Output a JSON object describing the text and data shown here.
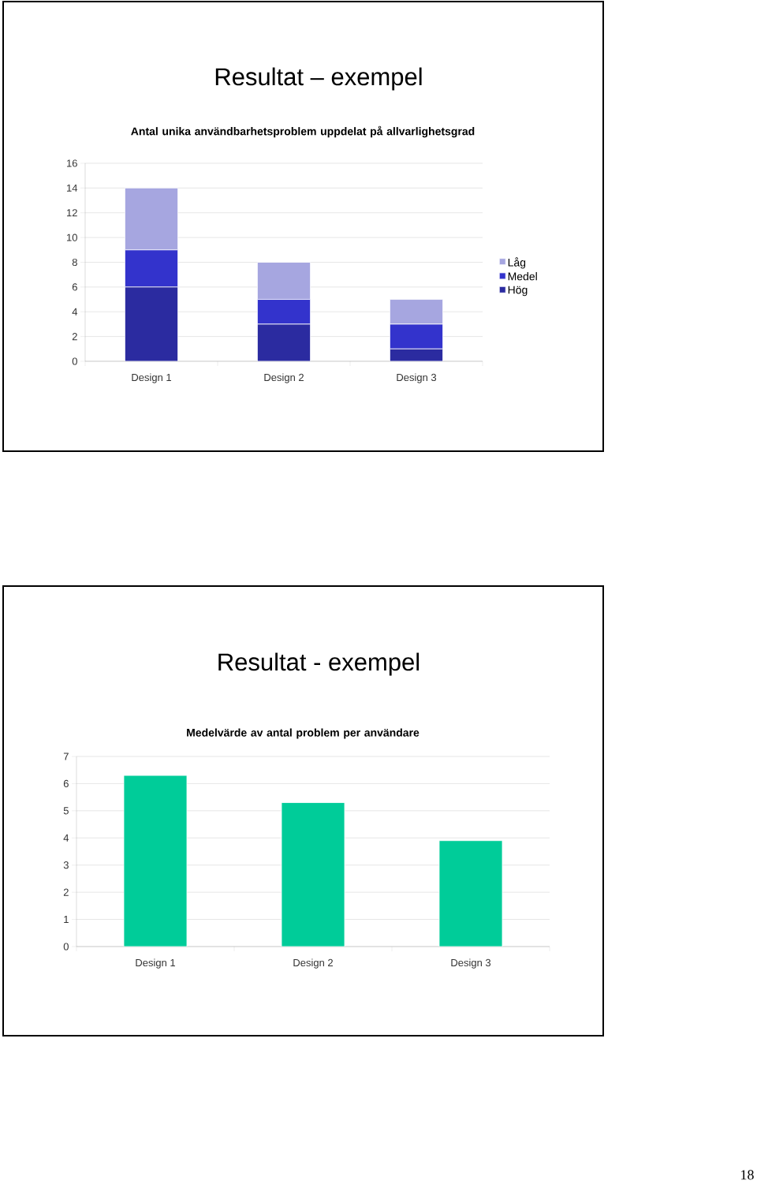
{
  "chart_data": [
    {
      "type": "bar",
      "title": "Resultat – exempel",
      "subtitle": "Antal unika användbarhetsproblem uppdelat på allvarlighetsgrad",
      "categories": [
        "Design 1",
        "Design 2",
        "Design 3"
      ],
      "stacked": true,
      "series": [
        {
          "name": "Hög",
          "color": "#2b2ba0",
          "values": [
            6,
            3,
            1
          ]
        },
        {
          "name": "Medel",
          "color": "#3333cc",
          "values": [
            3,
            2,
            2
          ]
        },
        {
          "name": "Låg",
          "color": "#a6a6e0",
          "values": [
            5,
            3,
            2
          ]
        }
      ],
      "ylim": [
        0,
        16
      ],
      "yticks": [
        0,
        2,
        4,
        6,
        8,
        10,
        12,
        14,
        16
      ],
      "grid": "y",
      "legend": "right"
    },
    {
      "type": "bar",
      "title": "Resultat - exempel",
      "subtitle": "Medelvärde av antal problem per användare",
      "categories": [
        "Design 1",
        "Design 2",
        "Design 3"
      ],
      "values": [
        6.3,
        5.3,
        3.9
      ],
      "color": "#00cc99",
      "ylim": [
        0,
        7
      ],
      "yticks": [
        0,
        1,
        2,
        3,
        4,
        5,
        6,
        7
      ],
      "grid": "y",
      "annotations": [
        "18"
      ]
    }
  ]
}
